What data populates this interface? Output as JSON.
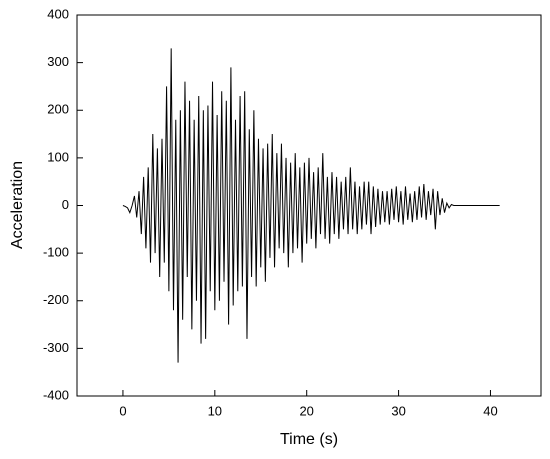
{
  "chart_data": {
    "type": "line",
    "x_label": "Time (s)",
    "y_label": "Acceleration",
    "x": [
      0,
      0.25,
      0.5,
      0.75,
      1,
      1.25,
      1.5,
      1.75,
      2,
      2.25,
      2.5,
      2.75,
      3,
      3.25,
      3.5,
      3.75,
      4,
      4.25,
      4.5,
      4.75,
      5,
      5.25,
      5.5,
      5.75,
      6,
      6.25,
      6.5,
      6.75,
      7,
      7.25,
      7.5,
      7.75,
      8,
      8.25,
      8.5,
      8.75,
      9,
      9.25,
      9.5,
      9.75,
      10,
      10.25,
      10.5,
      10.75,
      11,
      11.25,
      11.5,
      11.75,
      12,
      12.25,
      12.5,
      12.75,
      13,
      13.25,
      13.5,
      13.75,
      14,
      14.25,
      14.5,
      14.75,
      15,
      15.25,
      15.5,
      15.75,
      16,
      16.25,
      16.5,
      16.75,
      17,
      17.25,
      17.5,
      17.75,
      18,
      18.25,
      18.5,
      18.75,
      19,
      19.25,
      19.5,
      19.75,
      20,
      20.25,
      20.5,
      20.75,
      21,
      21.25,
      21.5,
      21.75,
      22,
      22.25,
      22.5,
      22.75,
      23,
      23.25,
      23.5,
      23.75,
      24,
      24.25,
      24.5,
      24.75,
      25,
      25.25,
      25.5,
      25.75,
      26,
      26.25,
      26.5,
      26.75,
      27,
      27.25,
      27.5,
      27.75,
      28,
      28.25,
      28.5,
      28.75,
      29,
      29.25,
      29.5,
      29.75,
      30,
      30.25,
      30.5,
      30.75,
      31,
      31.25,
      31.5,
      31.75,
      32,
      32.25,
      32.5,
      32.75,
      33,
      33.25,
      33.5,
      33.75,
      34,
      34.25,
      34.5,
      34.75,
      35,
      35.25,
      35.5,
      35.75,
      36,
      41
    ],
    "values": [
      0,
      -2,
      -5,
      -15,
      0,
      20,
      -25,
      30,
      -60,
      60,
      -90,
      80,
      -120,
      150,
      -100,
      120,
      -150,
      140,
      -120,
      250,
      -180,
      330,
      -220,
      180,
      -330,
      200,
      -240,
      260,
      -150,
      220,
      -260,
      180,
      -200,
      230,
      -290,
      200,
      -280,
      210,
      -180,
      260,
      -220,
      190,
      -200,
      240,
      -160,
      220,
      -250,
      290,
      -210,
      180,
      -180,
      230,
      -170,
      240,
      -280,
      160,
      -150,
      200,
      -170,
      140,
      -130,
      120,
      -160,
      130,
      -110,
      150,
      -130,
      110,
      -90,
      130,
      -100,
      100,
      -130,
      90,
      -100,
      110,
      -90,
      80,
      -120,
      90,
      -80,
      100,
      -70,
      70,
      -90,
      80,
      -60,
      110,
      -70,
      60,
      -80,
      70,
      -60,
      60,
      -70,
      50,
      -50,
      60,
      -60,
      80,
      -50,
      50,
      -60,
      40,
      -50,
      50,
      -40,
      50,
      -60,
      40,
      -45,
      35,
      -40,
      30,
      -35,
      30,
      -40,
      35,
      -30,
      40,
      -35,
      30,
      -40,
      40,
      -30,
      25,
      -35,
      30,
      -30,
      40,
      -25,
      45,
      -30,
      30,
      -20,
      35,
      -50,
      30,
      -20,
      15,
      -15,
      5,
      -5,
      2,
      0,
      0
    ],
    "color": "#000000",
    "xlim": [
      -5,
      45.5
    ],
    "xticks": [
      0,
      10,
      20,
      30,
      40
    ],
    "ylim": [
      -400,
      400
    ],
    "yticks": [
      -400,
      -300,
      -200,
      -100,
      0,
      100,
      200,
      300,
      400
    ]
  }
}
